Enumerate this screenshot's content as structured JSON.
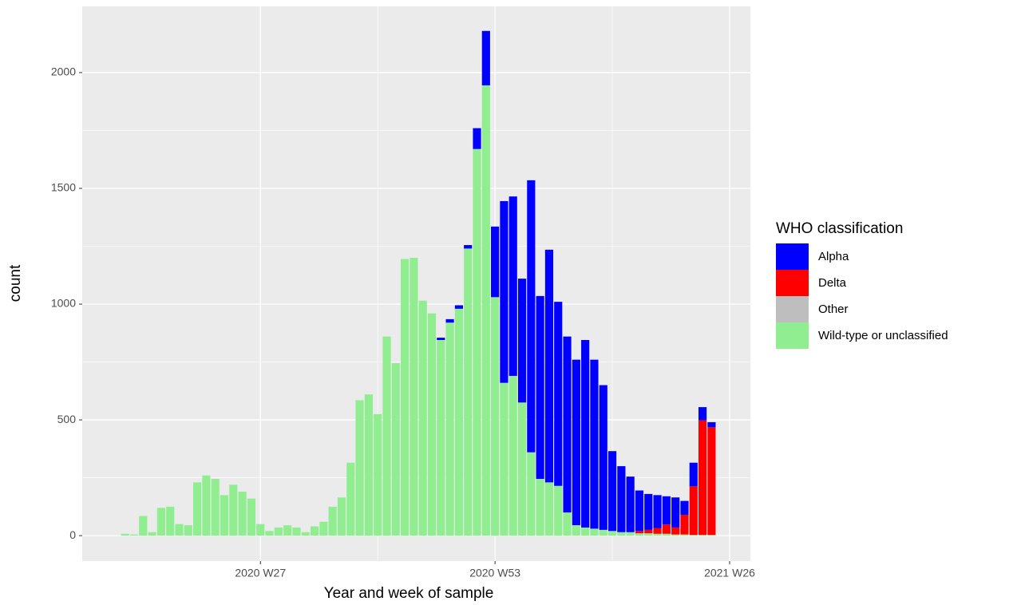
{
  "chart_data": {
    "type": "stacked-bar",
    "x_label": "Year and week of sample",
    "y_label": "count",
    "legend_title": "WHO classification",
    "legend_position": "right",
    "grid": true,
    "x": [
      12,
      13,
      14,
      15,
      16,
      17,
      18,
      19,
      20,
      21,
      22,
      23,
      24,
      25,
      26,
      27,
      28,
      29,
      30,
      31,
      32,
      33,
      34,
      35,
      36,
      37,
      38,
      39,
      40,
      41,
      42,
      43,
      44,
      45,
      46,
      47,
      48,
      49,
      50,
      51,
      52,
      53,
      54,
      55,
      56,
      57,
      58,
      59,
      60,
      61,
      62,
      63,
      64,
      65,
      66,
      67,
      68,
      69,
      70,
      71,
      72,
      73,
      74,
      75,
      76,
      77
    ],
    "xlim": [
      7.25,
      81.3
    ],
    "xticks": [
      {
        "value": 27,
        "label": "2020 W27"
      },
      {
        "value": 53,
        "label": "2020 W53"
      },
      {
        "value": 79,
        "label": "2021 W26"
      }
    ],
    "ylim": [
      -110,
      2286
    ],
    "yticks": [
      0,
      500,
      1000,
      1500,
      2000
    ],
    "series": [
      {
        "name": "Wild-type or unclassified",
        "color": "#90ee90",
        "values": [
          8,
          5,
          85,
          15,
          120,
          125,
          50,
          45,
          230,
          260,
          245,
          175,
          220,
          190,
          160,
          50,
          20,
          35,
          45,
          35,
          15,
          40,
          60,
          125,
          165,
          315,
          585,
          610,
          525,
          860,
          745,
          1195,
          1200,
          1015,
          960,
          845,
          920,
          980,
          1240,
          1670,
          1945,
          1030,
          660,
          690,
          575,
          360,
          245,
          230,
          215,
          100,
          45,
          35,
          30,
          25,
          20,
          15,
          15,
          10,
          10,
          8,
          8,
          5,
          5,
          3,
          3,
          3
        ]
      },
      {
        "name": "Other",
        "color": "#bebebe",
        "values": [
          0,
          0,
          0,
          0,
          0,
          0,
          0,
          0,
          0,
          0,
          0,
          0,
          0,
          0,
          0,
          0,
          0,
          0,
          0,
          0,
          0,
          0,
          0,
          0,
          0,
          0,
          0,
          0,
          0,
          0,
          0,
          0,
          0,
          0,
          0,
          0,
          0,
          0,
          0,
          0,
          0,
          0,
          0,
          0,
          0,
          0,
          0,
          0,
          0,
          0,
          0,
          0,
          0,
          0,
          0,
          0,
          0,
          0,
          0,
          0,
          0,
          0,
          0,
          0,
          0,
          0
        ]
      },
      {
        "name": "Delta",
        "color": "#ff0000",
        "values": [
          0,
          0,
          0,
          0,
          0,
          0,
          0,
          0,
          0,
          0,
          0,
          0,
          0,
          0,
          0,
          0,
          0,
          0,
          0,
          0,
          0,
          0,
          0,
          0,
          0,
          0,
          0,
          0,
          0,
          0,
          0,
          0,
          0,
          0,
          0,
          0,
          0,
          0,
          0,
          0,
          0,
          0,
          0,
          0,
          0,
          0,
          0,
          0,
          0,
          0,
          0,
          0,
          0,
          0,
          0,
          0,
          0,
          10,
          15,
          25,
          40,
          30,
          85,
          210,
          495,
          465
        ]
      },
      {
        "name": "Alpha",
        "color": "#0000ff",
        "values": [
          0,
          0,
          0,
          0,
          0,
          0,
          0,
          0,
          0,
          0,
          0,
          0,
          0,
          0,
          0,
          0,
          0,
          0,
          0,
          0,
          0,
          0,
          0,
          0,
          0,
          0,
          0,
          0,
          0,
          0,
          0,
          0,
          0,
          0,
          0,
          10,
          15,
          15,
          15,
          90,
          235,
          305,
          785,
          775,
          535,
          1175,
          790,
          1005,
          795,
          760,
          715,
          810,
          730,
          625,
          345,
          285,
          240,
          175,
          155,
          142,
          122,
          130,
          60,
          102,
          57,
          22
        ]
      }
    ]
  }
}
